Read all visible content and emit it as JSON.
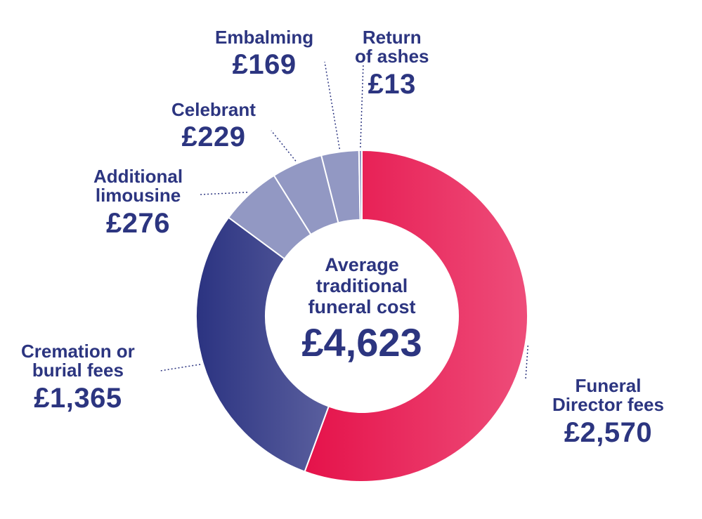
{
  "chart_data": {
    "type": "pie",
    "center": {
      "title_lines": [
        "Average",
        "traditional",
        "funeral cost"
      ],
      "total_label": "£4,623",
      "total": 4623
    },
    "slices": [
      {
        "name": "Funeral Director fees",
        "label_lines": [
          "Funeral",
          "Director fees"
        ],
        "value": 2570,
        "value_label": "£2,570",
        "color": "#e8194f"
      },
      {
        "name": "Cremation or burial fees",
        "label_lines": [
          "Cremation or",
          "burial fees"
        ],
        "value": 1365,
        "value_label": "£1,365",
        "color": "#2f3582"
      },
      {
        "name": "Additional limousine",
        "label_lines": [
          "Additional",
          "limousine"
        ],
        "value": 276,
        "value_label": "£276",
        "color": "#9298c3"
      },
      {
        "name": "Celebrant",
        "label_lines": [
          "Celebrant"
        ],
        "value": 229,
        "value_label": "£229",
        "color": "#9298c3"
      },
      {
        "name": "Embalming",
        "label_lines": [
          "Embalming"
        ],
        "value": 169,
        "value_label": "£169",
        "color": "#9298c3"
      },
      {
        "name": "Return of ashes",
        "label_lines": [
          "Return",
          "of ashes"
        ],
        "value": 13,
        "value_label": "£13",
        "color": "#9298c3"
      }
    ]
  }
}
